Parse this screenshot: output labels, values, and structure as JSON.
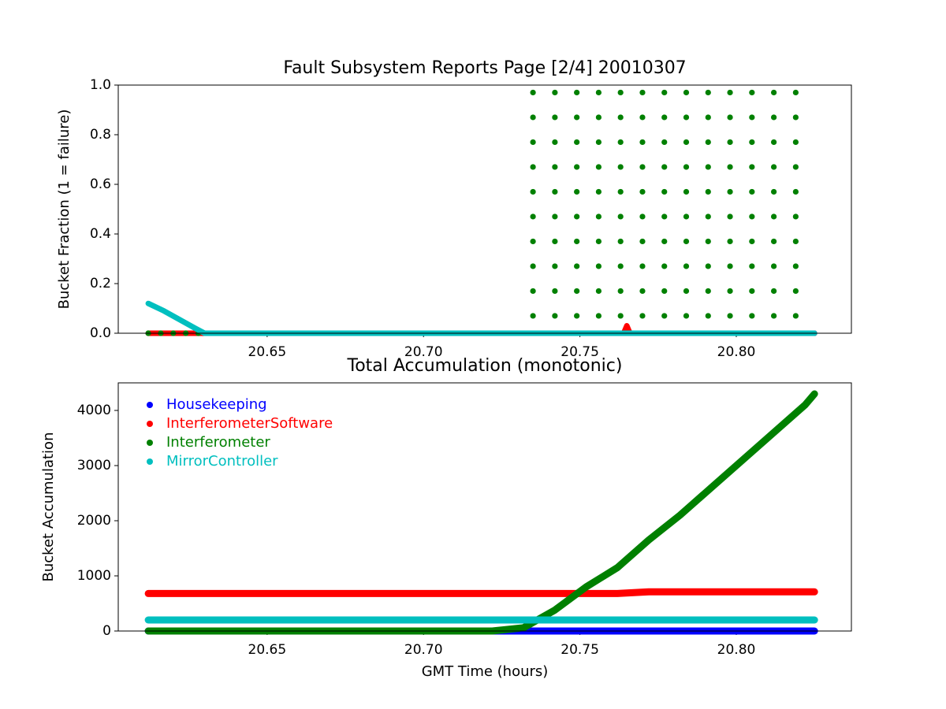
{
  "chart_data": [
    {
      "type": "scatter",
      "title": "Fault Subsystem Reports Page [2/4] 20010307",
      "ylabel": "Bucket Fraction (1 = failure)",
      "xlim": [
        20.6024,
        20.8368
      ],
      "xticks": [
        20.65,
        {
          "value": 20.7,
          "label": "20.70"
        },
        20.75,
        {
          "value": 20.8,
          "label": "20.80"
        }
      ],
      "ylim": [
        0,
        1
      ],
      "yticks": [
        {
          "value": 0,
          "label": "0.0"
        },
        0.2,
        0.4,
        0.6,
        0.8,
        {
          "value": 1,
          "label": "1.0"
        }
      ],
      "series": [
        {
          "name": "Housekeeping",
          "color": "#0000ff",
          "marker": "dense",
          "x": [
            20.612,
            20.825
          ],
          "values": [
            0,
            0
          ]
        },
        {
          "name": "InterferometerSoftware",
          "color": "#ff0000",
          "marker": "dense",
          "x": [
            20.612,
            20.764,
            20.765,
            20.766,
            20.825
          ],
          "values": [
            0,
            0,
            0.03,
            0,
            0
          ]
        },
        {
          "name": "Interferometer",
          "color": "#008000",
          "marker": "dot",
          "x": [
            20.612,
            20.616,
            20.62,
            20.624,
            20.628,
            20.735,
            20.735,
            20.735,
            20.735,
            20.735,
            20.735,
            20.735,
            20.735,
            20.735,
            20.735,
            20.742,
            20.742,
            20.742,
            20.742,
            20.742,
            20.742,
            20.742,
            20.742,
            20.742,
            20.742,
            20.749,
            20.749,
            20.749,
            20.749,
            20.749,
            20.749,
            20.749,
            20.749,
            20.749,
            20.749,
            20.756,
            20.756,
            20.756,
            20.756,
            20.756,
            20.756,
            20.756,
            20.756,
            20.756,
            20.756,
            20.763,
            20.763,
            20.763,
            20.763,
            20.763,
            20.763,
            20.763,
            20.763,
            20.763,
            20.763,
            20.77,
            20.77,
            20.77,
            20.77,
            20.77,
            20.77,
            20.77,
            20.77,
            20.77,
            20.77,
            20.777,
            20.777,
            20.777,
            20.777,
            20.777,
            20.777,
            20.777,
            20.777,
            20.777,
            20.777,
            20.784,
            20.784,
            20.784,
            20.784,
            20.784,
            20.784,
            20.784,
            20.784,
            20.784,
            20.784,
            20.791,
            20.791,
            20.791,
            20.791,
            20.791,
            20.791,
            20.791,
            20.791,
            20.791,
            20.791,
            20.798,
            20.798,
            20.798,
            20.798,
            20.798,
            20.798,
            20.798,
            20.798,
            20.798,
            20.798,
            20.805,
            20.805,
            20.805,
            20.805,
            20.805,
            20.805,
            20.805,
            20.805,
            20.805,
            20.805,
            20.812,
            20.812,
            20.812,
            20.812,
            20.812,
            20.812,
            20.812,
            20.812,
            20.812,
            20.812,
            20.819,
            20.819,
            20.819,
            20.819,
            20.819,
            20.819,
            20.819,
            20.819,
            20.819,
            20.819
          ],
          "values": [
            0,
            0,
            0,
            0,
            0,
            0.07,
            0.17,
            0.27,
            0.37,
            0.47,
            0.57,
            0.67,
            0.77,
            0.87,
            0.97,
            0.07,
            0.17,
            0.27,
            0.37,
            0.47,
            0.57,
            0.67,
            0.77,
            0.87,
            0.97,
            0.07,
            0.17,
            0.27,
            0.37,
            0.47,
            0.57,
            0.67,
            0.77,
            0.87,
            0.97,
            0.07,
            0.17,
            0.27,
            0.37,
            0.47,
            0.57,
            0.67,
            0.77,
            0.87,
            0.97,
            0.07,
            0.17,
            0.27,
            0.37,
            0.47,
            0.57,
            0.67,
            0.77,
            0.87,
            0.97,
            0.07,
            0.17,
            0.27,
            0.37,
            0.47,
            0.57,
            0.67,
            0.77,
            0.87,
            0.97,
            0.07,
            0.17,
            0.27,
            0.37,
            0.47,
            0.57,
            0.67,
            0.77,
            0.87,
            0.97,
            0.07,
            0.17,
            0.27,
            0.37,
            0.47,
            0.57,
            0.67,
            0.77,
            0.87,
            0.97,
            0.07,
            0.17,
            0.27,
            0.37,
            0.47,
            0.57,
            0.67,
            0.77,
            0.87,
            0.97,
            0.07,
            0.17,
            0.27,
            0.37,
            0.47,
            0.57,
            0.67,
            0.77,
            0.87,
            0.97,
            0.07,
            0.17,
            0.27,
            0.37,
            0.47,
            0.57,
            0.67,
            0.77,
            0.87,
            0.97,
            0.07,
            0.17,
            0.27,
            0.37,
            0.47,
            0.57,
            0.67,
            0.77,
            0.87,
            0.97,
            0.07,
            0.17,
            0.27,
            0.37,
            0.47,
            0.57,
            0.67,
            0.77,
            0.87,
            0.97
          ]
        },
        {
          "name": "MirrorController",
          "color": "#00bfbf",
          "marker": "dense",
          "x": [
            20.612,
            20.617,
            20.622,
            20.627,
            20.63,
            20.825
          ],
          "values": [
            0.12,
            0.09,
            0.055,
            0.02,
            0,
            0
          ]
        }
      ]
    },
    {
      "type": "scatter",
      "title": "Total Accumulation (monotonic)",
      "ylabel": "Bucket Accumulation",
      "xlabel": "GMT Time (hours)",
      "xlim": [
        20.6024,
        20.8368
      ],
      "xticks": [
        20.65,
        {
          "value": 20.7,
          "label": "20.70"
        },
        20.75,
        {
          "value": 20.8,
          "label": "20.80"
        }
      ],
      "ylim": [
        0,
        4500
      ],
      "yticks": [
        0,
        1000,
        2000,
        3000,
        4000
      ],
      "legend": "upper left",
      "x": [
        20.612,
        20.622,
        20.632,
        20.642,
        20.652,
        20.662,
        20.672,
        20.682,
        20.692,
        20.702,
        20.712,
        20.722,
        20.732,
        20.742,
        20.752,
        20.762,
        20.772,
        20.782,
        20.792,
        20.802,
        20.812,
        20.822,
        20.825
      ],
      "series": [
        {
          "name": "Housekeeping",
          "color": "#0000ff",
          "marker": "dense",
          "values": [
            0,
            0,
            0,
            0,
            0,
            0,
            0,
            0,
            0,
            0,
            0,
            0,
            0,
            0,
            0,
            0,
            0,
            0,
            0,
            0,
            0,
            0,
            0
          ]
        },
        {
          "name": "InterferometerSoftware",
          "color": "#ff0000",
          "marker": "dense",
          "values": [
            680,
            680,
            680,
            680,
            680,
            680,
            680,
            680,
            680,
            680,
            680,
            680,
            680,
            680,
            680,
            680,
            710,
            710,
            710,
            710,
            710,
            710,
            710
          ]
        },
        {
          "name": "Interferometer",
          "color": "#008000",
          "marker": "dense",
          "values": [
            0,
            0,
            0,
            0,
            0,
            0,
            0,
            0,
            0,
            0,
            0,
            0,
            60,
            380,
            800,
            1150,
            1650,
            2100,
            2600,
            3100,
            3600,
            4100,
            4300
          ]
        },
        {
          "name": "MirrorController",
          "color": "#00bfbf",
          "marker": "dense",
          "values": [
            200,
            200,
            200,
            200,
            200,
            200,
            200,
            200,
            200,
            200,
            200,
            200,
            200,
            200,
            200,
            200,
            200,
            200,
            200,
            200,
            200,
            200,
            200
          ]
        }
      ]
    }
  ]
}
